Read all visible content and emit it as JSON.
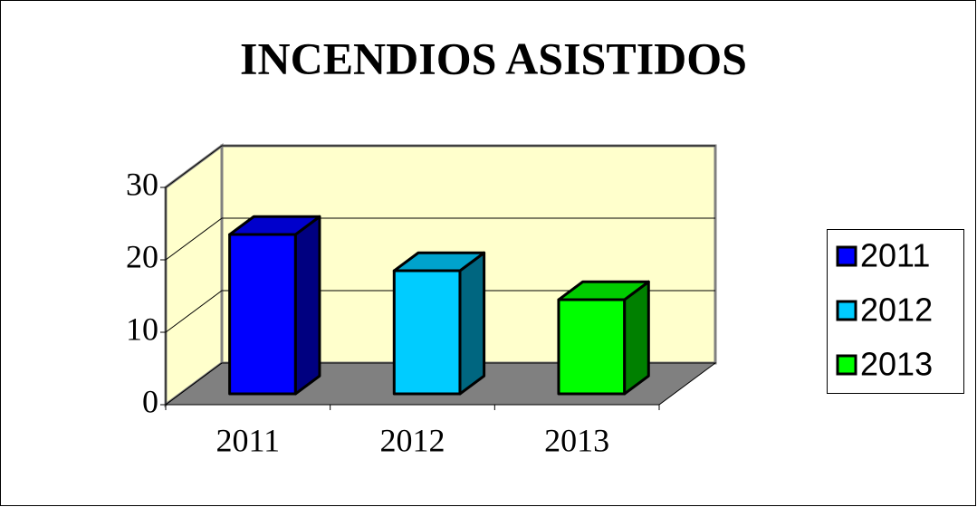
{
  "chart_data": {
    "type": "bar3d",
    "title": "INCENDIOS ASISTIDOS",
    "categories": [
      "2011",
      "2012",
      "2013"
    ],
    "values": [
      22,
      17,
      13
    ],
    "colors": [
      "#0000ff",
      "#00ccff",
      "#00ff00"
    ],
    "ylim": [
      0,
      30
    ],
    "yticks": [
      0,
      10,
      20,
      30
    ],
    "grid": true,
    "legend": "right"
  }
}
